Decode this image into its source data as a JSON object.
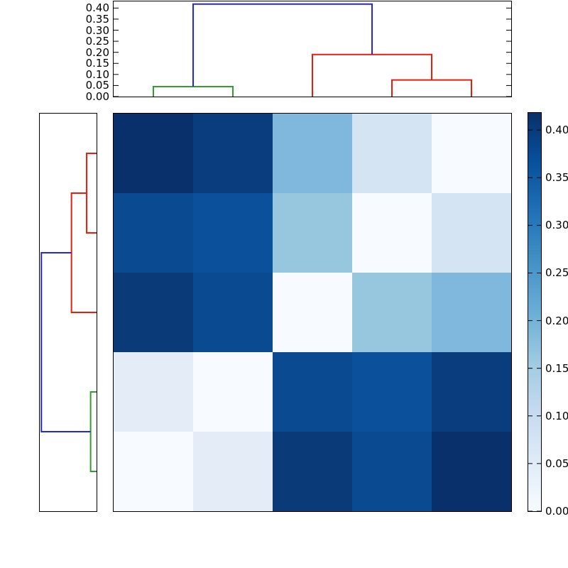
{
  "figure": {
    "background": "#ffffff",
    "spine_color": "#000000",
    "tick_color": "#000000"
  },
  "chart_data": {
    "type": "heatmap",
    "title": "",
    "subtitle": "",
    "layout": "clustered heatmap: top dendrogram, left dendrogram, 5x5 distance matrix, right colorbar",
    "colormap": "Blues",
    "vmin": 0.0,
    "vmax": 0.418,
    "grid": false,
    "matrix": {
      "n_rows": 5,
      "n_cols": 5,
      "values": [
        [
          0.418,
          0.395,
          0.19,
          0.075,
          0.0
        ],
        [
          0.375,
          0.36,
          0.165,
          0.0,
          0.075
        ],
        [
          0.4,
          0.375,
          0.0,
          0.165,
          0.19
        ],
        [
          0.045,
          0.0,
          0.375,
          0.36,
          0.395
        ],
        [
          0.0,
          0.045,
          0.4,
          0.375,
          0.418
        ]
      ],
      "cell_colors": [
        [
          "#09306b",
          "#0a3d7e",
          "#7fb8dc",
          "#d5e4f2",
          "#f7fbff"
        ],
        [
          "#0a4a91",
          "#0b509b",
          "#97c6df",
          "#f7fbff",
          "#d5e4f2"
        ],
        [
          "#0a3a78",
          "#0a4a91",
          "#f7fbff",
          "#97c6df",
          "#7fb8dc"
        ],
        [
          "#e3ecf7",
          "#f7fbff",
          "#0a4a91",
          "#0b509b",
          "#0a3d7e"
        ],
        [
          "#f7fbff",
          "#e3ecf7",
          "#0a3a78",
          "#0a4a91",
          "#09306b"
        ]
      ]
    },
    "dendrogram_top": {
      "orientation": "top",
      "axis_max": 0.43,
      "ytick_labels": [
        "0.00",
        "0.05",
        "0.10",
        "0.15",
        "0.20",
        "0.25",
        "0.30",
        "0.35",
        "0.40"
      ],
      "ytick_values": [
        0.0,
        0.05,
        0.1,
        0.15,
        0.2,
        0.25,
        0.3,
        0.35,
        0.4
      ],
      "merge_heights": [
        0.045,
        0.075,
        0.19,
        0.418
      ],
      "links": [
        {
          "color": "#339c33",
          "leaf_pos": [
            1.0,
            1.0,
            2.0,
            2.0
          ],
          "height": [
            0.0,
            0.045,
            0.045,
            0.0
          ]
        },
        {
          "color": "#ee1a0b",
          "leaf_pos": [
            4.0,
            4.0,
            5.0,
            5.0
          ],
          "height": [
            0.0,
            0.075,
            0.075,
            0.0
          ]
        },
        {
          "color": "#ee1a0b",
          "leaf_pos": [
            3.0,
            3.0,
            4.5,
            4.5
          ],
          "height": [
            0.0,
            0.19,
            0.19,
            0.075
          ]
        },
        {
          "color": "#2525f0",
          "leaf_pos": [
            1.5,
            1.5,
            3.75,
            3.75
          ],
          "height": [
            0.045,
            0.418,
            0.418,
            0.19
          ]
        }
      ]
    },
    "dendrogram_left": {
      "orientation": "left",
      "axis_max": 0.43,
      "merge_heights": [
        0.075,
        0.045,
        0.19,
        0.418
      ],
      "links": [
        {
          "color": "#ee1a0b",
          "leaf_pos": [
            1.0,
            1.0,
            2.0,
            2.0
          ],
          "height": [
            0.0,
            0.075,
            0.075,
            0.0
          ]
        },
        {
          "color": "#ee1a0b",
          "leaf_pos": [
            1.5,
            1.5,
            3.0,
            3.0
          ],
          "height": [
            0.075,
            0.19,
            0.19,
            0.0
          ]
        },
        {
          "color": "#339c33",
          "leaf_pos": [
            4.0,
            4.0,
            5.0,
            5.0
          ],
          "height": [
            0.0,
            0.045,
            0.045,
            0.0
          ]
        },
        {
          "color": "#2525f0",
          "leaf_pos": [
            2.25,
            2.25,
            4.5,
            4.5
          ],
          "height": [
            0.19,
            0.418,
            0.418,
            0.045
          ]
        }
      ]
    },
    "colorbar": {
      "side": "right",
      "tick_labels": [
        "0.00",
        "0.05",
        "0.10",
        "0.15",
        "0.20",
        "0.25",
        "0.30",
        "0.35",
        "0.40"
      ],
      "tick_values": [
        0.0,
        0.05,
        0.1,
        0.15,
        0.2,
        0.25,
        0.3,
        0.35,
        0.4
      ],
      "vmin": 0.0,
      "vmax": 0.418,
      "gradient_stops": [
        {
          "frac": 0.0,
          "color": "#f7fbff"
        },
        {
          "frac": 0.125,
          "color": "#deebf7"
        },
        {
          "frac": 0.25,
          "color": "#c6dbef"
        },
        {
          "frac": 0.375,
          "color": "#9ecae1"
        },
        {
          "frac": 0.5,
          "color": "#6baed6"
        },
        {
          "frac": 0.625,
          "color": "#4292c6"
        },
        {
          "frac": 0.75,
          "color": "#2171b5"
        },
        {
          "frac": 0.875,
          "color": "#08519c"
        },
        {
          "frac": 1.0,
          "color": "#08306b"
        }
      ]
    }
  }
}
